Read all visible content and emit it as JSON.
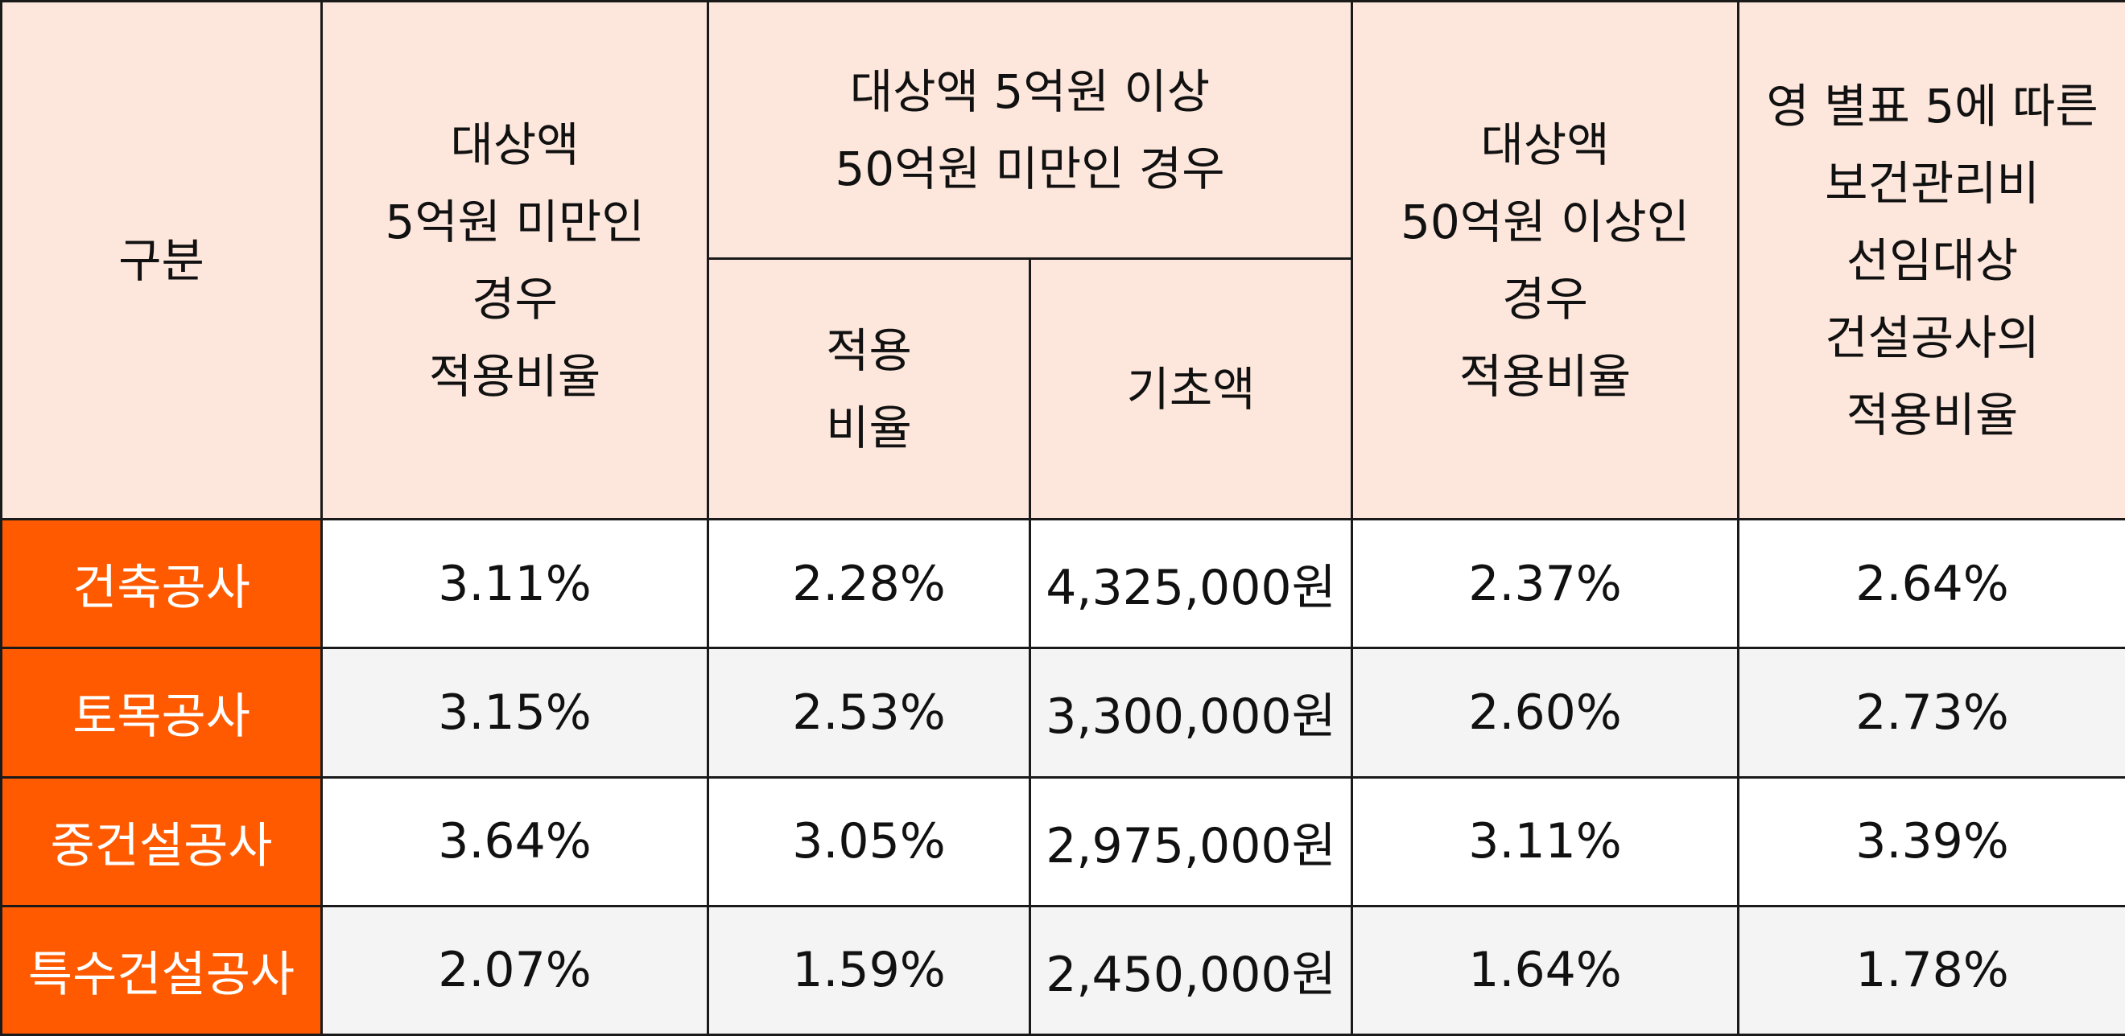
{
  "header": {
    "category": "구분",
    "under_5": "대상액\n5억원 미만인\n경우\n적용비율",
    "mid_group": "대상액 5억원 이상\n50억원 미만인 경우",
    "mid_rate": "적용\n비율",
    "mid_base": "기초액",
    "over_50": "대상액\n50억원 이상인\n경우\n적용비율",
    "appendix5": "영 별표 5에 따른\n보건관리비\n선임대상\n건설공사의\n적용비율"
  },
  "rows": [
    {
      "category": "건축공사",
      "under_5": "3.11%",
      "mid_rate": "2.28%",
      "mid_base": "4,325,000원",
      "over_50": "2.37%",
      "appendix5": "2.64%"
    },
    {
      "category": "토목공사",
      "under_5": "3.15%",
      "mid_rate": "2.53%",
      "mid_base": "3,300,000원",
      "over_50": "2.60%",
      "appendix5": "2.73%"
    },
    {
      "category": "중건설공사",
      "under_5": "3.64%",
      "mid_rate": "3.05%",
      "mid_base": "2,975,000원",
      "over_50": "3.11%",
      "appendix5": "3.39%"
    },
    {
      "category": "특수건설공사",
      "under_5": "2.07%",
      "mid_rate": "1.59%",
      "mid_base": "2,450,000원",
      "over_50": "1.64%",
      "appendix5": "1.78%"
    }
  ],
  "colors": {
    "header_bg": "#fde7dc",
    "row_header_bg": "#ff5a00",
    "row_header_text": "#ffffff",
    "alt_row_bg": "#f4f4f4",
    "border": "#1a1a1a"
  }
}
